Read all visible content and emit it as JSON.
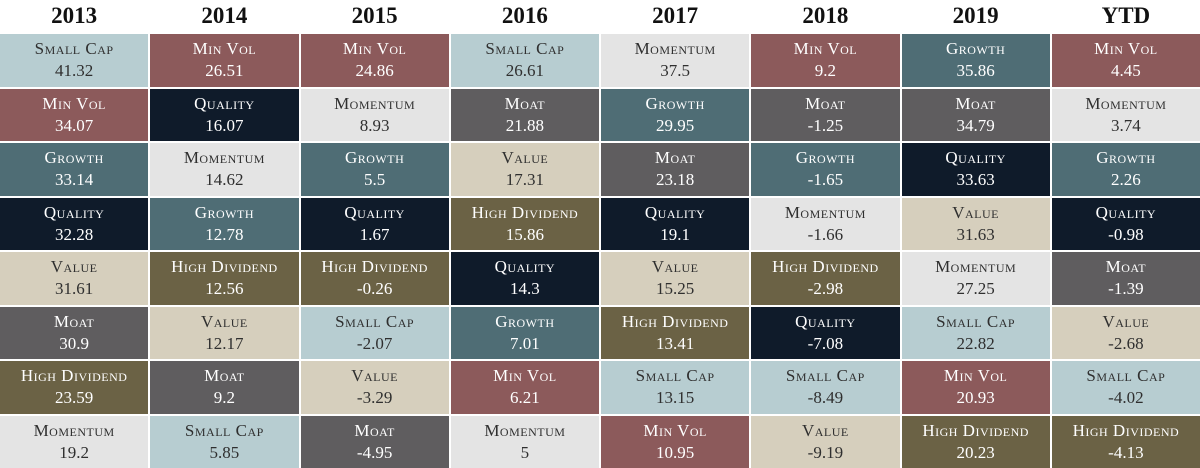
{
  "table": {
    "styles": {
      "Small Cap": {
        "color": "#b7cdd1",
        "text_color": "#2f2f2f"
      },
      "Min Vol": {
        "color": "#8c5a5b",
        "text_color": "#ffffff"
      },
      "Momentum": {
        "color": "#e4e4e4",
        "text_color": "#2f2f2f"
      },
      "Quality": {
        "color": "#0f1b2a",
        "text_color": "#ffffff"
      },
      "Growth": {
        "color": "#4f6d75",
        "text_color": "#ffffff"
      },
      "Moat": {
        "color": "#5f5d5f",
        "text_color": "#ffffff"
      },
      "Value": {
        "color": "#d6cfbd",
        "text_color": "#2f2f2f"
      },
      "High Dividend": {
        "color": "#6b6245",
        "text_color": "#ffffff"
      }
    },
    "columns": [
      {
        "header": "2013",
        "cells": [
          {
            "label": "Small Cap",
            "value": 41.32
          },
          {
            "label": "Min Vol",
            "value": 34.07
          },
          {
            "label": "Growth",
            "value": 33.14
          },
          {
            "label": "Quality",
            "value": 32.28
          },
          {
            "label": "Value",
            "value": 31.61
          },
          {
            "label": "Moat",
            "value": 30.9
          },
          {
            "label": "High Dividend",
            "value": 23.59
          },
          {
            "label": "Momentum",
            "value": 19.2
          }
        ]
      },
      {
        "header": "2014",
        "cells": [
          {
            "label": "Min Vol",
            "value": 26.51
          },
          {
            "label": "Quality",
            "value": 16.07
          },
          {
            "label": "Momentum",
            "value": 14.62
          },
          {
            "label": "Growth",
            "value": 12.78
          },
          {
            "label": "High Dividend",
            "value": 12.56
          },
          {
            "label": "Value",
            "value": 12.17
          },
          {
            "label": "Moat",
            "value": 9.2
          },
          {
            "label": "Small Cap",
            "value": 5.85
          }
        ]
      },
      {
        "header": "2015",
        "cells": [
          {
            "label": "Min Vol",
            "value": 24.86
          },
          {
            "label": "Momentum",
            "value": 8.93
          },
          {
            "label": "Growth",
            "value": 5.5
          },
          {
            "label": "Quality",
            "value": 1.67
          },
          {
            "label": "High Dividend",
            "value": -0.26
          },
          {
            "label": "Small Cap",
            "value": -2.07
          },
          {
            "label": "Value",
            "value": -3.29
          },
          {
            "label": "Moat",
            "value": -4.95
          }
        ]
      },
      {
        "header": "2016",
        "cells": [
          {
            "label": "Small Cap",
            "value": 26.61
          },
          {
            "label": "Moat",
            "value": 21.88
          },
          {
            "label": "Value",
            "value": 17.31
          },
          {
            "label": "High Dividend",
            "value": 15.86
          },
          {
            "label": "Quality",
            "value": 14.3
          },
          {
            "label": "Growth",
            "value": 7.01
          },
          {
            "label": "Min Vol",
            "value": 6.21
          },
          {
            "label": "Momentum",
            "value": 5
          }
        ]
      },
      {
        "header": "2017",
        "cells": [
          {
            "label": "Momentum",
            "value": 37.5
          },
          {
            "label": "Growth",
            "value": 29.95
          },
          {
            "label": "Moat",
            "value": 23.18
          },
          {
            "label": "Quality",
            "value": 19.1
          },
          {
            "label": "Value",
            "value": 15.25
          },
          {
            "label": "High Dividend",
            "value": 13.41
          },
          {
            "label": "Small Cap",
            "value": 13.15
          },
          {
            "label": "Min Vol",
            "value": 10.95
          }
        ]
      },
      {
        "header": "2018",
        "cells": [
          {
            "label": "Min Vol",
            "value": 9.2
          },
          {
            "label": "Moat",
            "value": -1.25
          },
          {
            "label": "Growth",
            "value": -1.65
          },
          {
            "label": "Momentum",
            "value": -1.66
          },
          {
            "label": "High Dividend",
            "value": -2.98
          },
          {
            "label": "Quality",
            "value": -7.08
          },
          {
            "label": "Small Cap",
            "value": -8.49
          },
          {
            "label": "Value",
            "value": -9.19
          }
        ]
      },
      {
        "header": "2019",
        "cells": [
          {
            "label": "Growth",
            "value": 35.86
          },
          {
            "label": "Moat",
            "value": 34.79
          },
          {
            "label": "Quality",
            "value": 33.63
          },
          {
            "label": "Value",
            "value": 31.63
          },
          {
            "label": "Momentum",
            "value": 27.25
          },
          {
            "label": "Small Cap",
            "value": 22.82
          },
          {
            "label": "Min Vol",
            "value": 20.93
          },
          {
            "label": "High Dividend",
            "value": 20.23
          }
        ]
      },
      {
        "header": "YTD",
        "cells": [
          {
            "label": "Min Vol",
            "value": 4.45
          },
          {
            "label": "Momentum",
            "value": 3.74
          },
          {
            "label": "Growth",
            "value": 2.26
          },
          {
            "label": "Quality",
            "value": -0.98
          },
          {
            "label": "Moat",
            "value": -1.39
          },
          {
            "label": "Value",
            "value": -2.68
          },
          {
            "label": "Small Cap",
            "value": -4.02
          },
          {
            "label": "High Dividend",
            "value": -4.13
          }
        ]
      }
    ]
  }
}
